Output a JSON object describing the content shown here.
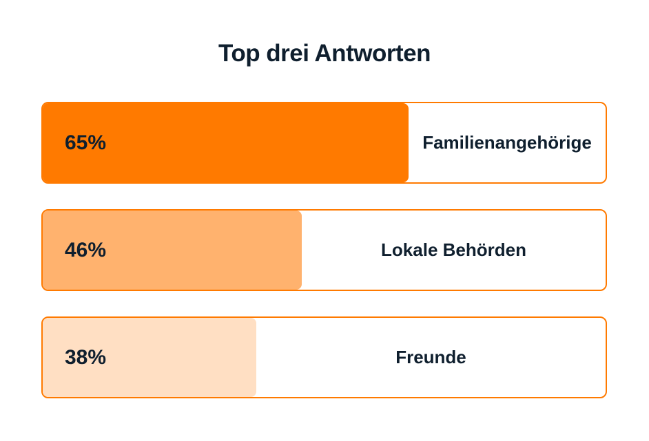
{
  "chart_data": {
    "type": "bar",
    "orientation": "horizontal",
    "title": "Top drei Antworten",
    "categories": [
      "Familienangehörige",
      "Lokale Behörden",
      "Freunde"
    ],
    "values": [
      65,
      46,
      38
    ],
    "value_labels": [
      "65%",
      "46%",
      "38%"
    ],
    "unit": "%",
    "xlim": [
      0,
      100
    ],
    "colors": [
      "#ff7a00",
      "#ffb26e",
      "#ffdfc3"
    ],
    "border_color": "#ff7a00",
    "grid": false,
    "legend": "none"
  }
}
